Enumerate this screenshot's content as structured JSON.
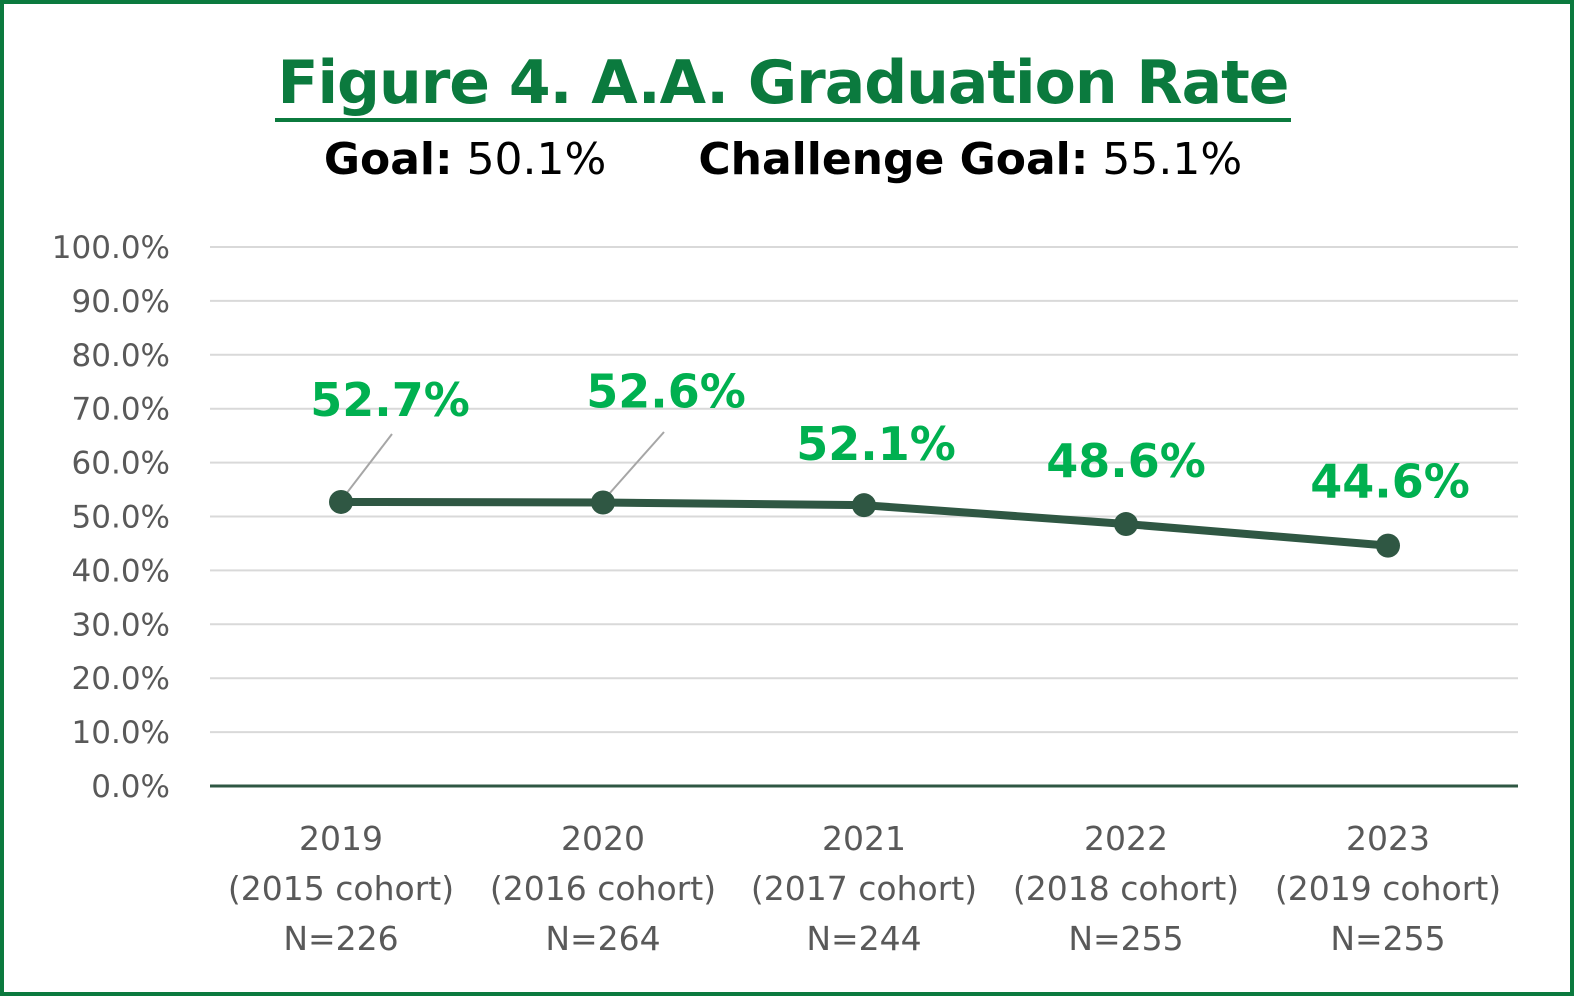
{
  "chart_data": {
    "type": "line",
    "title": "Figure 4. A.A. Graduation Rate",
    "subtitle": {
      "goal_label": "Goal:",
      "goal_value": "50.1%",
      "challenge_label": "Challenge Goal:",
      "challenge_value": "55.1%"
    },
    "categories": [
      [
        "2019",
        "(2015 cohort)",
        "N=226"
      ],
      [
        "2020",
        "(2016 cohort)",
        "N=264"
      ],
      [
        "2021",
        "(2017 cohort)",
        "N=244"
      ],
      [
        "2022",
        "(2018 cohort)",
        "N=255"
      ],
      [
        "2023",
        "(2019 cohort)",
        "N=255"
      ]
    ],
    "series": [
      {
        "values": [
          52.7,
          52.6,
          52.1,
          48.6,
          44.6
        ]
      }
    ],
    "data_labels": [
      "52.7%",
      "52.6%",
      "52.1%",
      "48.6%",
      "44.6%"
    ],
    "ylim": [
      0,
      100
    ],
    "yticks": [
      "0.0%",
      "10.0%",
      "20.0%",
      "30.0%",
      "40.0%",
      "50.0%",
      "60.0%",
      "70.0%",
      "80.0%",
      "90.0%",
      "100.0%"
    ],
    "grid": true,
    "colors": {
      "line": "#2f5743",
      "label": "#00b050",
      "title": "#0b7a3e",
      "frame": "#0b7a3e"
    }
  }
}
